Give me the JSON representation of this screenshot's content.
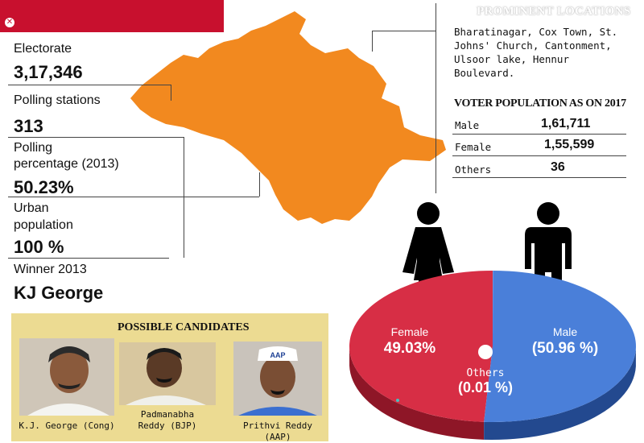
{
  "stats": {
    "electorate_label": "Electorate",
    "electorate_value": "3,17,346",
    "stations_label": "Polling stations",
    "stations_value": "313",
    "percentage_label_1": "Polling",
    "percentage_label_2": "percentage (2013)",
    "percentage_value": "50.23%",
    "urban_label_1": "Urban",
    "urban_label_2": "population",
    "urban_value": "100 %",
    "winner_label": "Winner 2013",
    "winner_value": "KJ George"
  },
  "locations": {
    "title": "PROMINENT LOCATIONS",
    "lines": [
      "Bharatinagar, Cox Town, St.",
      "Johns' Church, Cantonment,",
      "Ulsoor lake, Hennur",
      "Boulevard."
    ]
  },
  "voter_population": {
    "title": "VOTER POPULATION AS ON 2017",
    "rows": [
      {
        "label": "Male",
        "value": "1,61,711"
      },
      {
        "label": "Female",
        "value": "1,55,599"
      },
      {
        "label": "Others",
        "value": "36"
      }
    ]
  },
  "candidates": {
    "title": "POSSIBLE CANDIDATES",
    "people": [
      {
        "name": "K.J. George (Cong)",
        "name_line2": ""
      },
      {
        "name": "Padmanabha",
        "name_line2": "Reddy (BJP)"
      },
      {
        "name": "Prithvi Reddy (AAP)",
        "name_line2": "",
        "cap_text": "AAP"
      }
    ]
  },
  "colors": {
    "accent_red": "#c8102e",
    "map_orange": "#f2891f",
    "pie_female": "#d72e45",
    "pie_female_side": "#8e1627",
    "pie_male": "#4a7fd9",
    "pie_male_side": "#23498f",
    "candidate_panel": "#ecdb92"
  },
  "icons": [
    "close-icon",
    "female-figure-icon",
    "male-figure-icon"
  ],
  "chart_data": {
    "type": "pie",
    "title": "",
    "slices": [
      {
        "name": "Female",
        "value": 49.03,
        "label": "Female",
        "value_label": "49.03%"
      },
      {
        "name": "Male",
        "value": 50.96,
        "label": "Male",
        "value_label": "(50.96 %)"
      },
      {
        "name": "Others",
        "value": 0.01,
        "label": "Others",
        "value_label": "(0.01 %)"
      }
    ]
  }
}
